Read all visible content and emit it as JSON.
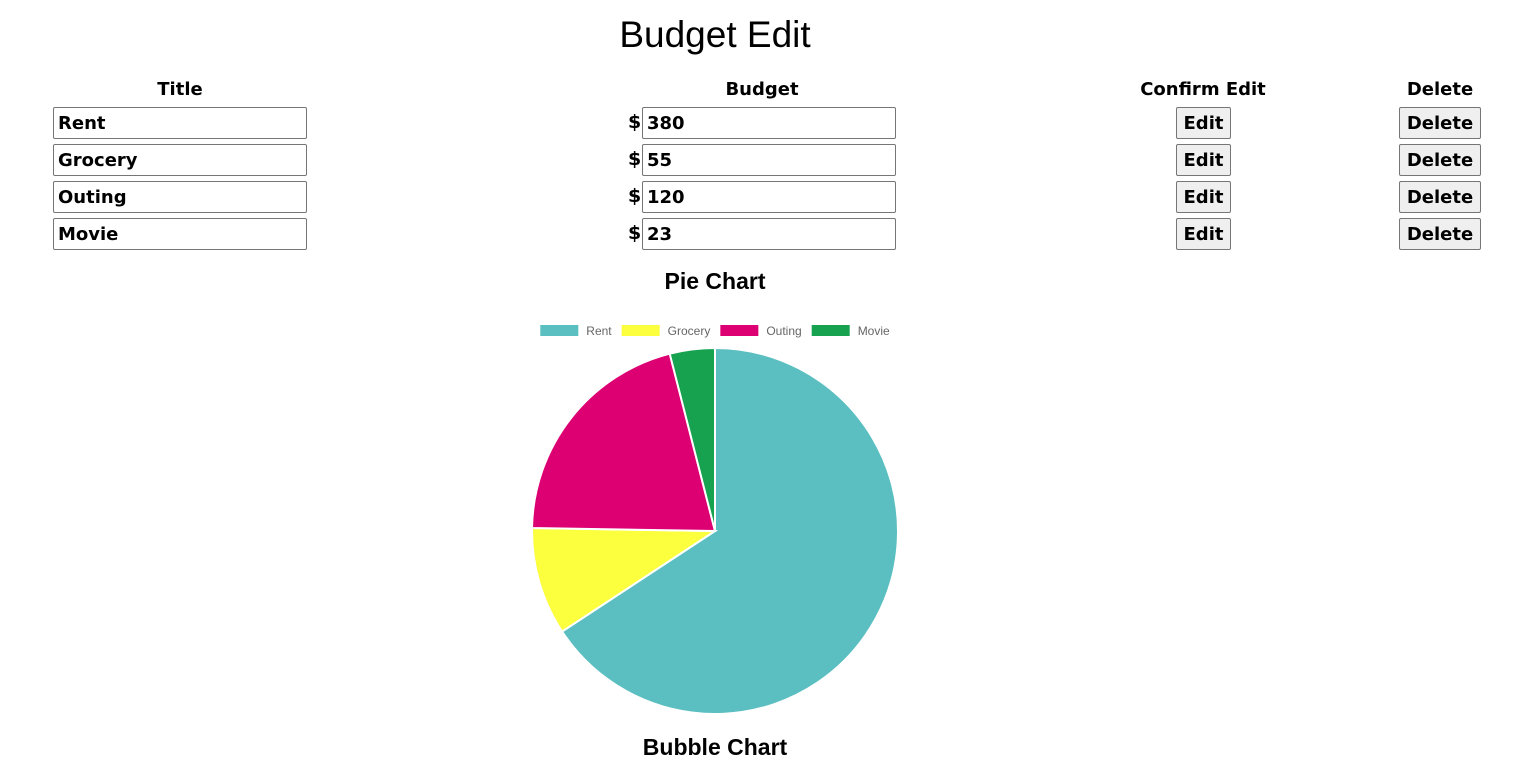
{
  "page": {
    "title": "Budget Edit"
  },
  "table": {
    "headers": {
      "title": "Title",
      "budget": "Budget",
      "confirm_edit": "Confirm Edit",
      "delete": "Delete"
    },
    "currency_symbol": "$",
    "rows": [
      {
        "title": "Rent",
        "budget": "380",
        "edit_label": "Edit",
        "delete_label": "Delete"
      },
      {
        "title": "Grocery",
        "budget": "55",
        "edit_label": "Edit",
        "delete_label": "Delete"
      },
      {
        "title": "Outing",
        "budget": "120",
        "edit_label": "Edit",
        "delete_label": "Delete"
      },
      {
        "title": "Movie",
        "budget": "23",
        "edit_label": "Edit",
        "delete_label": "Delete"
      }
    ]
  },
  "charts": {
    "pie_title": "Pie Chart",
    "bubble_title": "Bubble Chart"
  },
  "chart_data": {
    "type": "pie",
    "title": "",
    "categories": [
      "Rent",
      "Grocery",
      "Outing",
      "Movie"
    ],
    "values": [
      380,
      55,
      120,
      23
    ],
    "colors": [
      "#5bbfc1",
      "#fbff3d",
      "#dc0073",
      "#16a24f"
    ],
    "legend_position": "top"
  }
}
